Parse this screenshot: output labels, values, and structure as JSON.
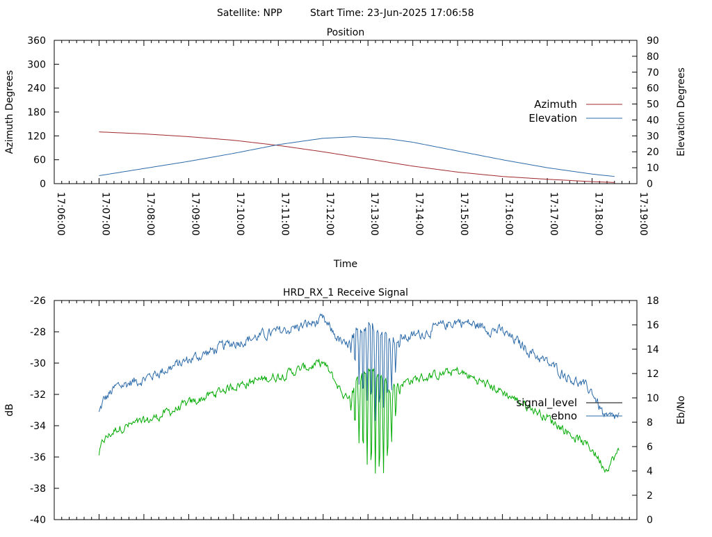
{
  "header": {
    "satellite_label": "Satellite: NPP",
    "start_time_label": "Start Time: 23-Jun-2025 17:06:58"
  },
  "chart_data": [
    {
      "id": "position",
      "type": "line",
      "title": "Position",
      "xlabel": "Time",
      "ylabel": "Azimuth Degrees",
      "y2label": "Elevation Degrees",
      "x_ticks": [
        "17:06:00",
        "17:07:00",
        "17:08:00",
        "17:09:00",
        "17:10:00",
        "17:11:00",
        "17:12:00",
        "17:13:00",
        "17:14:00",
        "17:15:00",
        "17:16:00",
        "17:17:00",
        "17:18:00",
        "17:19:00"
      ],
      "x_range_minutes": [
        0,
        13
      ],
      "ylim": [
        0,
        360
      ],
      "y_ticks": [
        0,
        60,
        120,
        180,
        240,
        300,
        360
      ],
      "y2lim": [
        0,
        90
      ],
      "y2_ticks": [
        0,
        10,
        20,
        30,
        40,
        50,
        60,
        70,
        80,
        90
      ],
      "legend_position": "right",
      "series": [
        {
          "name": "Azimuth",
          "axis": "y",
          "color": "#a0282c",
          "x": [
            1.0,
            2.0,
            3.0,
            4.0,
            5.0,
            6.0,
            7.0,
            8.0,
            9.0,
            10.0,
            11.0,
            12.0,
            12.5
          ],
          "values": [
            130,
            125,
            118,
            109,
            96,
            80,
            62,
            44,
            29,
            18,
            11,
            5,
            3
          ]
        },
        {
          "name": "Elevation",
          "axis": "y2",
          "color": "#2c6aa8",
          "x": [
            1.0,
            2.0,
            3.0,
            4.0,
            5.0,
            6.0,
            6.7,
            7.5,
            8.0,
            9.0,
            10.0,
            11.0,
            12.0,
            12.5
          ],
          "values": [
            5,
            9.5,
            14,
            19,
            24.5,
            28.5,
            29.5,
            28,
            26,
            20.5,
            15,
            10,
            6,
            4.5
          ]
        }
      ]
    },
    {
      "id": "signal",
      "type": "line",
      "title": "HRD_RX_1 Receive Signal",
      "xlabel": "",
      "ylabel": "dB",
      "y2label": "Eb/No",
      "x_range_minutes": [
        0,
        13
      ],
      "ylim": [
        -40,
        -26
      ],
      "y_ticks": [
        -40,
        -38,
        -36,
        -34,
        -32,
        -30,
        -28,
        -26
      ],
      "y2lim": [
        0,
        18
      ],
      "y2_ticks": [
        0,
        2,
        4,
        6,
        8,
        10,
        12,
        14,
        16,
        18
      ],
      "legend_position": "right",
      "series": [
        {
          "name": "signal_level",
          "axis": "y",
          "color": "#000000",
          "x": [
            1.0,
            1.1,
            1.4,
            2.0,
            3.0,
            4.0,
            5.0,
            6.0,
            6.5,
            7.0,
            7.5,
            8.0,
            9.0,
            10.0,
            11.0,
            12.0,
            12.3,
            12.6
          ],
          "values": [
            -33.2,
            -32.4,
            -31.5,
            -31.0,
            -29.8,
            -28.7,
            -28.0,
            -27.3,
            -29.0,
            -27.3,
            -28.5,
            -28.3,
            -27.3,
            -28.0,
            -30.0,
            -31.8,
            -33.6,
            -33.4
          ]
        },
        {
          "name": "ebno",
          "axis": "y2",
          "color": "#00aa00",
          "x": [
            1.0,
            1.1,
            1.4,
            2.0,
            3.0,
            4.0,
            5.0,
            6.0,
            6.5,
            7.0,
            7.5,
            8.0,
            9.0,
            10.0,
            11.0,
            12.0,
            12.3,
            12.6
          ],
          "values": [
            5.4,
            6.5,
            7.5,
            8.0,
            9.5,
            11.0,
            11.8,
            12.9,
            10.0,
            12.5,
            11.0,
            11.5,
            12.2,
            10.5,
            8.4,
            5.8,
            4.2,
            5.6
          ]
        }
      ]
    }
  ]
}
